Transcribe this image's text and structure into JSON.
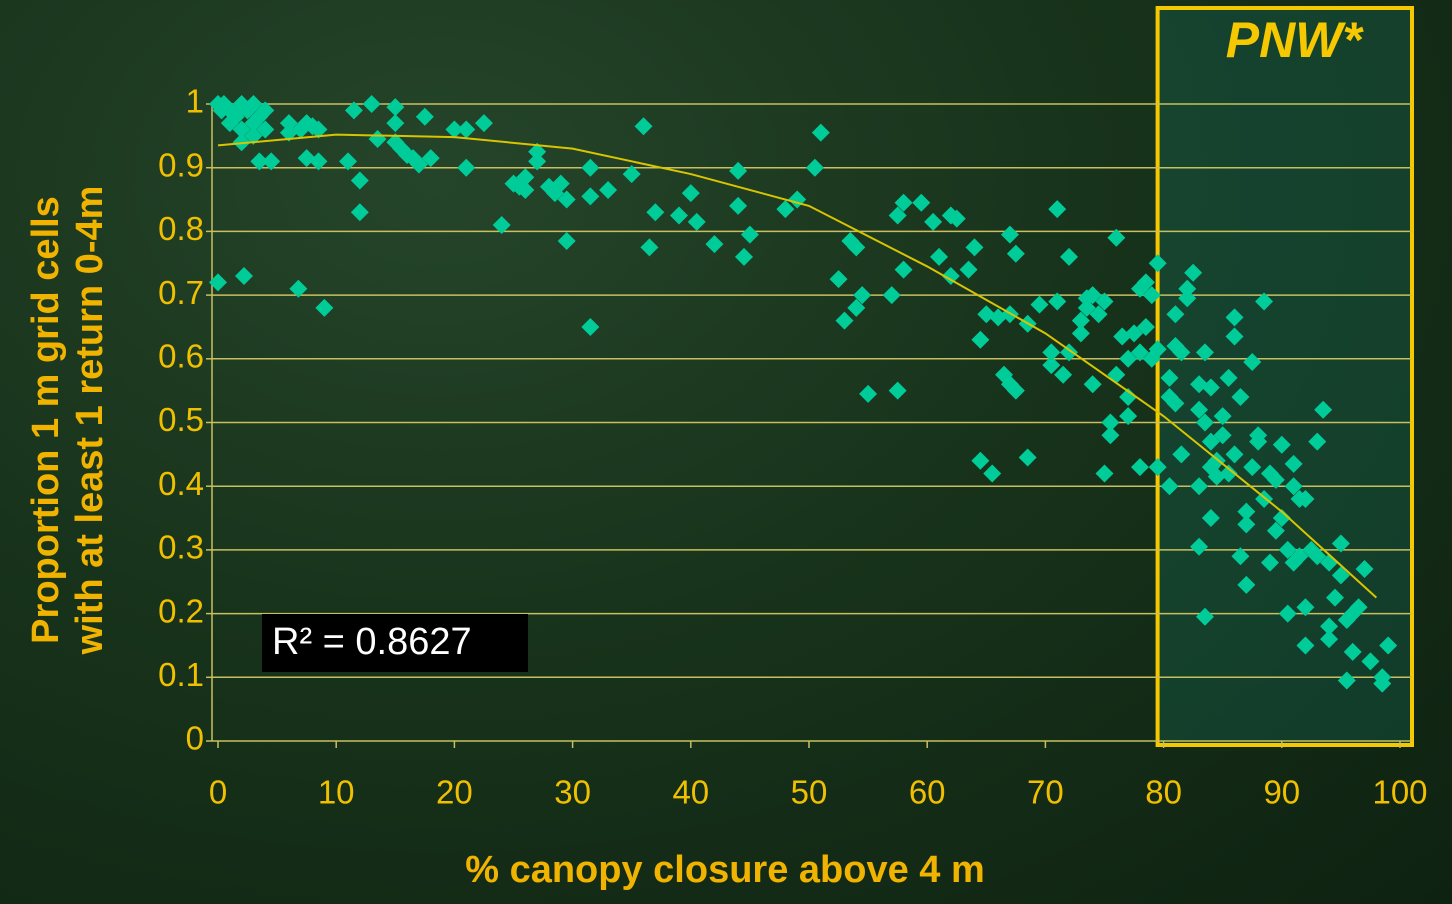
{
  "chart_data": {
    "type": "scatter",
    "ylabel": [
      "Proportion 1 m grid cells",
      "with at least 1 return 0-4m"
    ],
    "xlabel": "% canopy closure above 4 m",
    "annotation": "R² = 0.8627",
    "highlight": {
      "label": "PNW*",
      "xlim": [
        80,
        100
      ],
      "color": "#f5c800"
    },
    "xlim": [
      0,
      100
    ],
    "ylim": [
      0,
      1
    ],
    "xticks": [
      0,
      10,
      20,
      30,
      40,
      50,
      60,
      70,
      80,
      90,
      100
    ],
    "yticks": [
      0,
      0.1,
      0.2,
      0.3,
      0.4,
      0.5,
      0.6,
      0.7,
      0.8,
      0.9,
      1
    ],
    "grid": true,
    "series": [
      {
        "color": "#00cc99",
        "x": [
          0,
          0.3,
          0.5,
          1,
          1.5,
          2,
          2.5,
          3,
          3.5,
          4,
          1,
          2,
          3,
          4,
          3.5,
          4.5,
          2,
          0,
          2.2,
          1.5,
          3,
          6,
          6,
          7,
          7.5,
          8,
          8.5,
          7.5,
          8.5,
          6.8,
          9,
          11,
          11.5,
          12,
          12,
          13,
          13.5,
          15,
          15,
          15.5,
          16,
          16.5,
          17,
          17.5,
          18,
          15,
          20,
          21,
          21,
          22.5,
          24,
          25,
          25.5,
          26,
          26,
          27,
          27,
          28,
          28.5,
          29,
          29.5,
          29.5,
          31.5,
          31.5,
          31.5,
          33,
          35,
          36,
          36.5,
          37,
          39,
          40,
          40.5,
          42,
          44,
          44,
          44.5,
          45,
          48,
          49,
          50.5,
          51,
          52.5,
          53,
          53.5,
          54,
          54,
          54.5,
          55,
          57,
          57.5,
          57.5,
          58,
          58,
          59.5,
          60.5,
          61,
          62,
          62.5,
          62,
          63.5,
          64,
          64.5,
          64.5,
          65,
          65.5,
          66,
          66.5,
          67,
          67,
          67.5,
          67,
          67.5,
          68.5,
          68.5,
          69.5,
          70.5,
          70.5,
          71,
          71,
          71.5,
          72,
          72,
          73,
          73,
          73.5,
          73.5,
          74,
          74,
          74.5,
          75,
          75,
          75.5,
          75.5,
          76,
          76,
          76.5,
          77,
          77,
          77,
          77.5,
          78,
          78,
          78,
          78.5,
          78.5,
          79,
          79,
          79.5,
          79.5,
          79.5,
          80.5,
          80.5,
          80.5,
          81,
          81,
          81,
          81.5,
          81.5,
          82,
          82,
          82.5,
          83,
          83,
          83,
          83,
          83.5,
          83.5,
          83.5,
          84,
          84,
          84,
          84,
          84.5,
          84.5,
          85,
          85,
          85.5,
          85.5,
          86,
          86,
          86,
          86.5,
          86.5,
          87,
          87,
          87,
          87.5,
          87.5,
          88,
          88,
          88.5,
          88.5,
          89,
          89,
          89.5,
          89.5,
          90,
          90,
          90.5,
          90.5,
          91,
          91,
          91,
          91.5,
          91.5,
          92,
          92,
          92,
          92.5,
          93,
          93,
          93.5,
          94,
          94,
          94,
          94.5,
          95,
          95,
          95.5,
          95.5,
          96,
          96,
          96.5,
          97,
          97.5,
          98.5,
          98.5,
          99
        ],
        "values": [
          1,
          0.99,
          1,
          0.99,
          0.98,
          1,
          0.99,
          1,
          0.98,
          0.99,
          0.97,
          0.96,
          0.97,
          0.96,
          0.91,
          0.91,
          0.94,
          0.72,
          0.73,
          0.985,
          0.95,
          0.97,
          0.955,
          0.96,
          0.97,
          0.965,
          0.96,
          0.915,
          0.91,
          0.71,
          0.68,
          0.91,
          0.99,
          0.88,
          0.83,
          1,
          0.945,
          0.995,
          0.97,
          0.93,
          0.92,
          0.915,
          0.905,
          0.98,
          0.915,
          0.94,
          0.96,
          0.96,
          0.9,
          0.97,
          0.81,
          0.875,
          0.87,
          0.885,
          0.865,
          0.925,
          0.91,
          0.87,
          0.86,
          0.875,
          0.85,
          0.785,
          0.9,
          0.855,
          0.65,
          0.865,
          0.89,
          0.965,
          0.775,
          0.83,
          0.825,
          0.86,
          0.815,
          0.78,
          0.895,
          0.84,
          0.76,
          0.795,
          0.835,
          0.85,
          0.9,
          0.955,
          0.725,
          0.66,
          0.785,
          0.775,
          0.68,
          0.7,
          0.545,
          0.7,
          0.55,
          0.825,
          0.845,
          0.74,
          0.845,
          0.815,
          0.76,
          0.825,
          0.82,
          0.73,
          0.74,
          0.775,
          0.44,
          0.63,
          0.67,
          0.42,
          0.665,
          0.575,
          0.67,
          0.795,
          0.765,
          0.56,
          0.55,
          0.655,
          0.445,
          0.685,
          0.61,
          0.59,
          0.69,
          0.835,
          0.575,
          0.61,
          0.76,
          0.64,
          0.66,
          0.695,
          0.68,
          0.7,
          0.56,
          0.67,
          0.69,
          0.42,
          0.48,
          0.5,
          0.575,
          0.79,
          0.635,
          0.51,
          0.54,
          0.6,
          0.64,
          0.43,
          0.61,
          0.71,
          0.65,
          0.72,
          0.7,
          0.6,
          0.75,
          0.615,
          0.43,
          0.4,
          0.57,
          0.54,
          0.62,
          0.53,
          0.67,
          0.45,
          0.61,
          0.695,
          0.71,
          0.735,
          0.56,
          0.52,
          0.4,
          0.305,
          0.61,
          0.195,
          0.5,
          0.555,
          0.43,
          0.35,
          0.47,
          0.415,
          0.44,
          0.51,
          0.48,
          0.42,
          0.57,
          0.45,
          0.665,
          0.635,
          0.54,
          0.29,
          0.34,
          0.36,
          0.245,
          0.43,
          0.595,
          0.47,
          0.48,
          0.69,
          0.38,
          0.28,
          0.42,
          0.33,
          0.41,
          0.465,
          0.35,
          0.2,
          0.3,
          0.435,
          0.4,
          0.28,
          0.38,
          0.29,
          0.15,
          0.21,
          0.38,
          0.3,
          0.47,
          0.29,
          0.52,
          0.28,
          0.18,
          0.16,
          0.225,
          0.31,
          0.26,
          0.19,
          0.095,
          0.2,
          0.14,
          0.21,
          0.27,
          0.125,
          0.1,
          0.09,
          0.15
        ]
      }
    ],
    "trendline": {
      "color": "#d8c400",
      "x": [
        0,
        10,
        20,
        30,
        40,
        50,
        60,
        70,
        80,
        90,
        98
      ],
      "values": [
        0.935,
        0.952,
        0.948,
        0.93,
        0.89,
        0.84,
        0.745,
        0.64,
        0.51,
        0.36,
        0.225
      ]
    }
  }
}
